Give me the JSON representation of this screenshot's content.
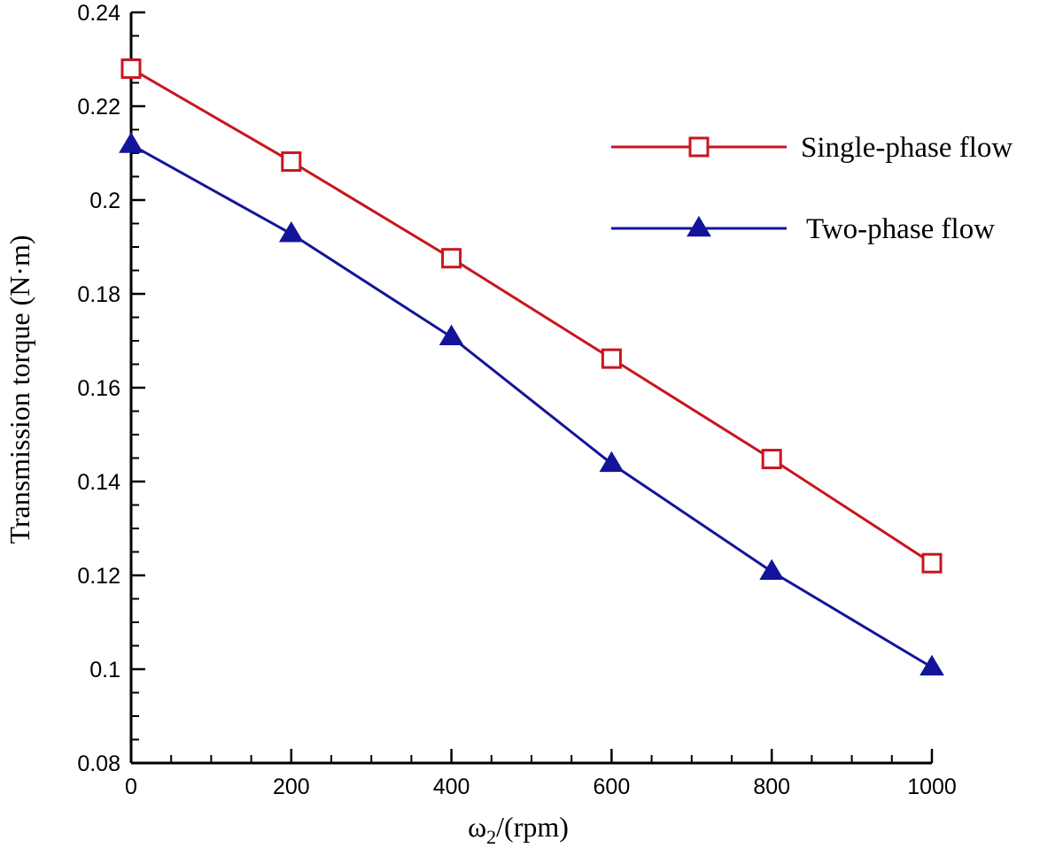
{
  "chart_data": {
    "type": "line",
    "xlabel": "ω2/(rpm)",
    "xlabel_main": "ω",
    "xlabel_sub": "2",
    "xlabel_rest": "/(rpm)",
    "ylabel": "Transmission torque (N·m)",
    "xlim": [
      0,
      1000
    ],
    "ylim": [
      0.08,
      0.24
    ],
    "x_ticks": [
      0,
      200,
      400,
      600,
      800,
      1000
    ],
    "x_tick_labels": [
      "0",
      "200",
      "400",
      "600",
      "800",
      "1000"
    ],
    "y_ticks": [
      0.08,
      0.1,
      0.12,
      0.14,
      0.16,
      0.18,
      0.2,
      0.22,
      0.24
    ],
    "y_tick_labels": [
      "0.08",
      "0.1",
      "0.12",
      "0.14",
      "0.16",
      "0.18",
      "0.2",
      "0.22",
      "0.24"
    ],
    "grid": false,
    "legend_position": "top-right",
    "x": [
      0,
      200,
      400,
      600,
      800,
      1000
    ],
    "series": [
      {
        "name": "Single-phase flow",
        "values": [
          0.228,
          0.2082,
          0.1876,
          0.1662,
          0.1448,
          0.1226
        ],
        "color": "#c8161d",
        "marker": "square-open"
      },
      {
        "name": "Two-phase flow",
        "values": [
          0.2118,
          0.1928,
          0.1708,
          0.1438,
          0.1208,
          0.1004
        ],
        "color": "#14149a",
        "marker": "triangle-filled"
      }
    ]
  }
}
